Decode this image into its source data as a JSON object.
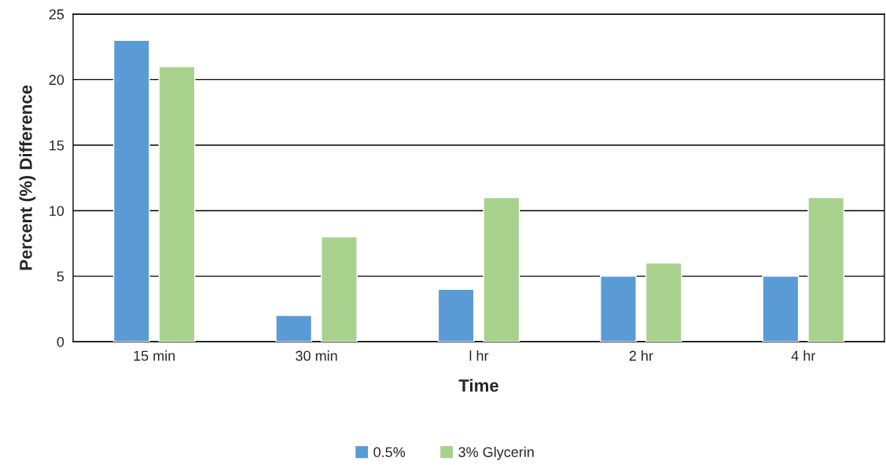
{
  "chart_data": {
    "type": "bar",
    "xlabel": "Time",
    "ylabel": "Percent (%) Difference",
    "categories": [
      "15 min",
      "30 min",
      "l hr",
      "2 hr",
      "4 hr"
    ],
    "series": [
      {
        "name": "0.5%",
        "color": "#5b9bd5",
        "values": [
          23,
          2,
          4,
          5,
          5
        ]
      },
      {
        "name": "3% Glycerin",
        "color": "#a9d18e",
        "values": [
          21,
          8,
          11,
          6,
          11
        ]
      }
    ],
    "ylim": [
      0,
      25
    ],
    "yticks": [
      0,
      5,
      10,
      15,
      20,
      25
    ],
    "grid": "y",
    "legend": "bottom"
  }
}
